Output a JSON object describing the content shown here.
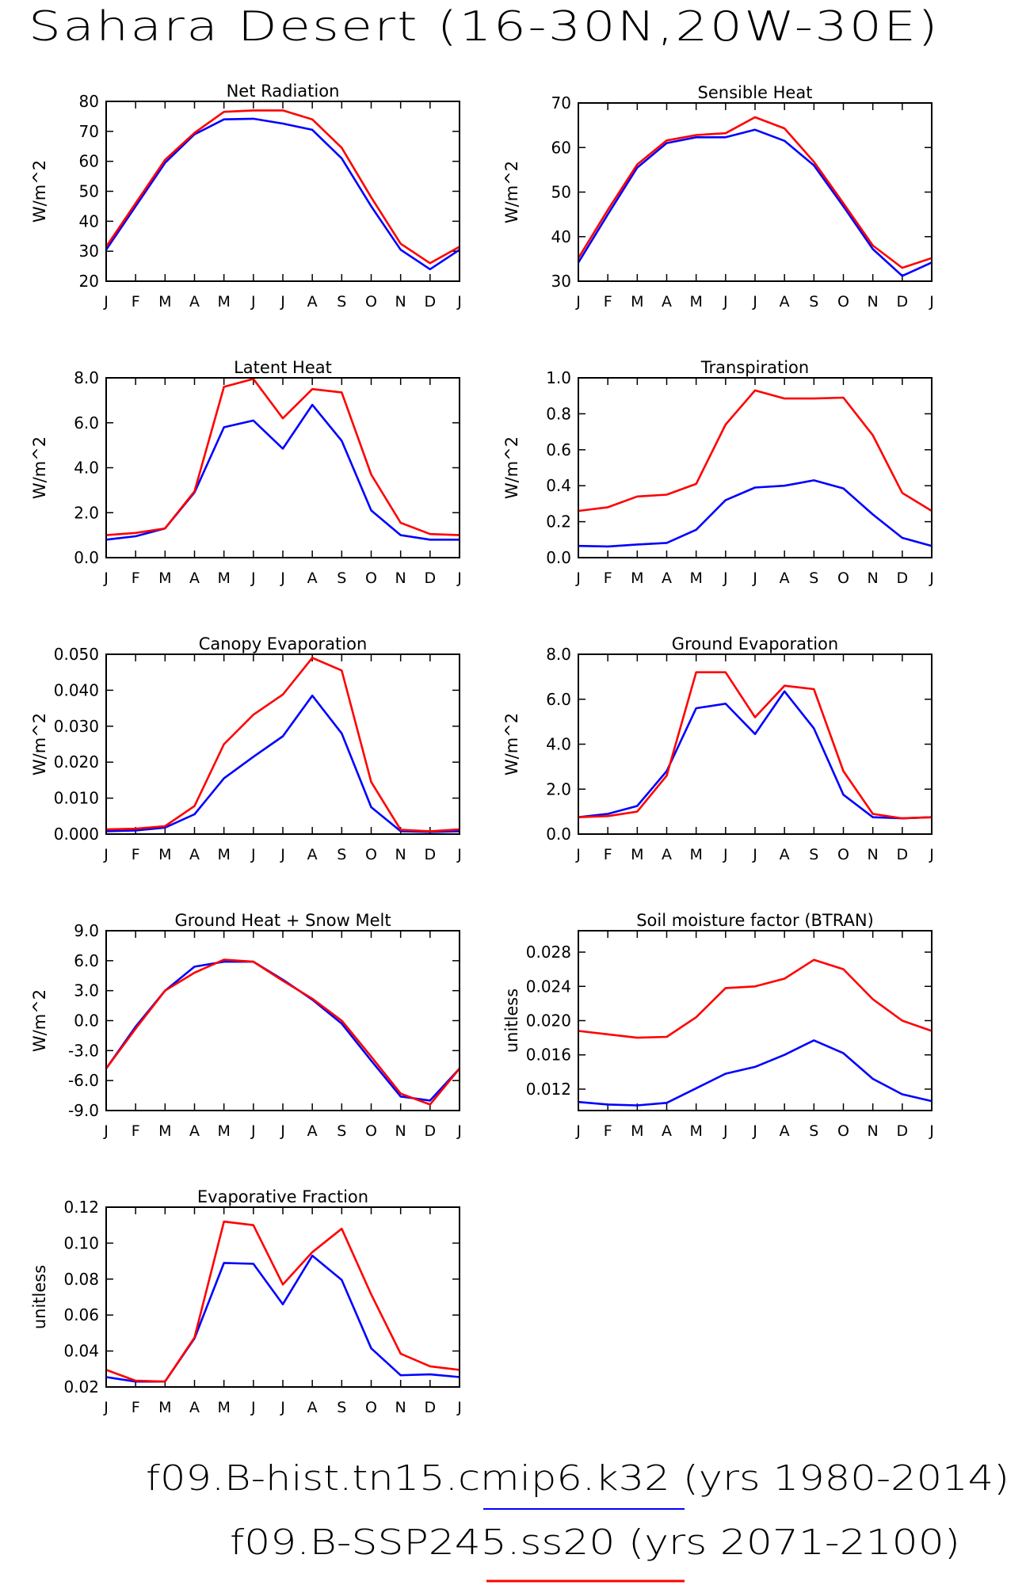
{
  "page_title": "Sahara Desert (16-30N,20W-30E)",
  "legend": [
    {
      "label": "f09.B-hist.tn15.cmip6.k32 (yrs 1980-2014)",
      "color": "#0000ff"
    },
    {
      "label": "f09.B-SSP245.ss20 (yrs 2071-2100)",
      "color": "#ff0000"
    }
  ],
  "chart_data": [
    {
      "type": "line",
      "title": "Net Radiation",
      "ylabel": "W/m^2",
      "x": [
        "J",
        "F",
        "M",
        "A",
        "M",
        "J",
        "J",
        "A",
        "S",
        "O",
        "N",
        "D",
        "J"
      ],
      "ylim": [
        20,
        80
      ],
      "yticks": [
        20,
        30,
        40,
        50,
        60,
        70,
        80
      ],
      "ytick_labels": [
        "20",
        "30",
        "40",
        "50",
        "60",
        "70",
        "80"
      ],
      "series": [
        {
          "color": "#0000ff",
          "values": [
            30.5,
            45,
            59.5,
            69,
            74,
            74.2,
            72.6,
            70.5,
            61,
            45,
            30.5,
            24,
            30.5
          ]
        },
        {
          "color": "#ff0000",
          "values": [
            31.5,
            46,
            60.5,
            69.5,
            76.5,
            77,
            77,
            74,
            64.5,
            48,
            32.5,
            26,
            31.5
          ]
        }
      ]
    },
    {
      "type": "line",
      "title": "Sensible Heat",
      "ylabel": "W/m^2",
      "x": [
        "J",
        "F",
        "M",
        "A",
        "M",
        "J",
        "J",
        "A",
        "S",
        "O",
        "N",
        "D",
        "J"
      ],
      "ylim": [
        30,
        70
      ],
      "yticks": [
        30,
        40,
        50,
        60,
        70
      ],
      "ytick_labels": [
        "30",
        "40",
        "50",
        "60",
        "70"
      ],
      "series": [
        {
          "color": "#0000ff",
          "values": [
            34.2,
            45,
            55.5,
            61,
            62.3,
            62.3,
            64,
            61.5,
            56,
            46.8,
            37.2,
            31.2,
            34.2
          ]
        },
        {
          "color": "#ff0000",
          "values": [
            35.2,
            46,
            56.2,
            61.6,
            62.8,
            63.2,
            66.8,
            64.3,
            56.8,
            47.5,
            38,
            33,
            35.2
          ]
        }
      ]
    },
    {
      "type": "line",
      "title": "Latent Heat",
      "ylabel": "W/m^2",
      "x": [
        "J",
        "F",
        "M",
        "A",
        "M",
        "J",
        "J",
        "A",
        "S",
        "O",
        "N",
        "D",
        "J"
      ],
      "ylim": [
        0,
        8
      ],
      "yticks": [
        0,
        2,
        4,
        6,
        8
      ],
      "ytick_labels": [
        "0.0",
        "2.0",
        "4.0",
        "6.0",
        "8.0"
      ],
      "series": [
        {
          "color": "#0000ff",
          "values": [
            0.8,
            0.95,
            1.3,
            2.9,
            5.8,
            6.1,
            4.85,
            6.8,
            5.2,
            2.1,
            1.0,
            0.8,
            0.8
          ]
        },
        {
          "color": "#ff0000",
          "values": [
            1.0,
            1.1,
            1.3,
            2.95,
            7.6,
            7.95,
            6.2,
            7.5,
            7.35,
            3.7,
            1.55,
            1.05,
            1.0
          ]
        }
      ]
    },
    {
      "type": "line",
      "title": "Transpiration",
      "ylabel": "W/m^2",
      "x": [
        "J",
        "F",
        "M",
        "A",
        "M",
        "J",
        "J",
        "A",
        "S",
        "O",
        "N",
        "D",
        "J"
      ],
      "ylim": [
        0,
        1
      ],
      "yticks": [
        0,
        0.2,
        0.4,
        0.6,
        0.8,
        1.0
      ],
      "ytick_labels": [
        "0.0",
        "0.2",
        "0.4",
        "0.6",
        "0.8",
        "1.0"
      ],
      "series": [
        {
          "color": "#0000ff",
          "values": [
            0.065,
            0.062,
            0.073,
            0.082,
            0.155,
            0.32,
            0.39,
            0.4,
            0.43,
            0.385,
            0.24,
            0.11,
            0.065
          ]
        },
        {
          "color": "#ff0000",
          "values": [
            0.26,
            0.28,
            0.34,
            0.35,
            0.41,
            0.74,
            0.93,
            0.885,
            0.885,
            0.89,
            0.68,
            0.36,
            0.26
          ]
        }
      ]
    },
    {
      "type": "line",
      "title": "Canopy Evaporation",
      "ylabel": "W/m^2",
      "x": [
        "J",
        "F",
        "M",
        "A",
        "M",
        "J",
        "J",
        "A",
        "S",
        "O",
        "N",
        "D",
        "J"
      ],
      "ylim": [
        0,
        0.05
      ],
      "yticks": [
        0,
        0.01,
        0.02,
        0.03,
        0.04,
        0.05
      ],
      "ytick_labels": [
        "0.000",
        "0.010",
        "0.020",
        "0.030",
        "0.040",
        "0.050"
      ],
      "series": [
        {
          "color": "#0000ff",
          "values": [
            0.0008,
            0.001,
            0.0018,
            0.0055,
            0.0155,
            0.0215,
            0.0272,
            0.0385,
            0.028,
            0.0075,
            0.0008,
            0.0006,
            0.0008
          ]
        },
        {
          "color": "#ff0000",
          "values": [
            0.0013,
            0.0015,
            0.0022,
            0.0078,
            0.025,
            0.0332,
            0.0388,
            0.049,
            0.0455,
            0.0145,
            0.0012,
            0.0008,
            0.0013
          ]
        }
      ]
    },
    {
      "type": "line",
      "title": "Ground Evaporation",
      "ylabel": "W/m^2",
      "x": [
        "J",
        "F",
        "M",
        "A",
        "M",
        "J",
        "J",
        "A",
        "S",
        "O",
        "N",
        "D",
        "J"
      ],
      "ylim": [
        0,
        8
      ],
      "yticks": [
        0,
        2,
        4,
        6,
        8
      ],
      "ytick_labels": [
        "0.0",
        "2.0",
        "4.0",
        "6.0",
        "8.0"
      ],
      "series": [
        {
          "color": "#0000ff",
          "values": [
            0.75,
            0.9,
            1.25,
            2.8,
            5.6,
            5.8,
            4.45,
            6.35,
            4.7,
            1.75,
            0.75,
            0.7,
            0.75
          ]
        },
        {
          "color": "#ff0000",
          "values": [
            0.75,
            0.8,
            1.0,
            2.6,
            7.2,
            7.2,
            5.2,
            6.6,
            6.45,
            2.8,
            0.9,
            0.7,
            0.75
          ]
        }
      ]
    },
    {
      "type": "line",
      "title": "Ground Heat + Snow Melt",
      "ylabel": "W/m^2",
      "x": [
        "J",
        "F",
        "M",
        "A",
        "M",
        "J",
        "J",
        "A",
        "S",
        "O",
        "N",
        "D",
        "J"
      ],
      "ylim": [
        -9,
        9
      ],
      "yticks": [
        -9,
        -6,
        -3,
        0,
        3,
        6,
        9
      ],
      "ytick_labels": [
        "-9.0",
        "-6.0",
        "-3.0",
        "0.0",
        "3.0",
        "6.0",
        "9.0"
      ],
      "series": [
        {
          "color": "#0000ff",
          "values": [
            -4.8,
            -0.6,
            3.0,
            5.4,
            5.9,
            5.9,
            4.1,
            2.1,
            -0.3,
            -4.0,
            -7.6,
            -8.0,
            -4.8
          ]
        },
        {
          "color": "#ff0000",
          "values": [
            -4.8,
            -0.8,
            3.0,
            4.8,
            6.1,
            5.9,
            4.0,
            2.2,
            0.0,
            -3.6,
            -7.3,
            -8.4,
            -4.8
          ]
        }
      ]
    },
    {
      "type": "line",
      "title": "Soil moisture factor (BTRAN)",
      "ylabel": "unitless",
      "x": [
        "J",
        "F",
        "M",
        "A",
        "M",
        "J",
        "J",
        "A",
        "S",
        "O",
        "N",
        "D",
        "J"
      ],
      "ylim": [
        0.0095,
        0.0305
      ],
      "yticks": [
        0.012,
        0.016,
        0.02,
        0.024,
        0.028
      ],
      "ytick_labels": [
        "0.012",
        "0.016",
        "0.020",
        "0.024",
        "0.028"
      ],
      "series": [
        {
          "color": "#0000ff",
          "values": [
            0.0105,
            0.0102,
            0.0101,
            0.0104,
            0.0121,
            0.0138,
            0.0146,
            0.016,
            0.0177,
            0.0162,
            0.0132,
            0.0114,
            0.0106
          ]
        },
        {
          "color": "#ff0000",
          "values": [
            0.0188,
            0.0184,
            0.018,
            0.0181,
            0.0204,
            0.0238,
            0.024,
            0.0249,
            0.0271,
            0.026,
            0.0225,
            0.02,
            0.0188
          ]
        }
      ]
    },
    {
      "type": "line",
      "title": "Evaporative Fraction",
      "ylabel": "unitless",
      "x": [
        "J",
        "F",
        "M",
        "A",
        "M",
        "J",
        "J",
        "A",
        "S",
        "O",
        "N",
        "D",
        "J"
      ],
      "ylim": [
        0.02,
        0.12
      ],
      "yticks": [
        0.02,
        0.04,
        0.06,
        0.08,
        0.1,
        0.12
      ],
      "ytick_labels": [
        "0.02",
        "0.04",
        "0.06",
        "0.08",
        "0.10",
        "0.12"
      ],
      "series": [
        {
          "color": "#0000ff",
          "values": [
            0.0255,
            0.023,
            0.023,
            0.047,
            0.089,
            0.0885,
            0.066,
            0.093,
            0.0795,
            0.0415,
            0.0265,
            0.027,
            0.0255
          ]
        },
        {
          "color": "#ff0000",
          "values": [
            0.0295,
            0.0235,
            0.023,
            0.0475,
            0.112,
            0.11,
            0.077,
            0.095,
            0.108,
            0.0715,
            0.0385,
            0.0315,
            0.0295
          ]
        }
      ]
    }
  ]
}
